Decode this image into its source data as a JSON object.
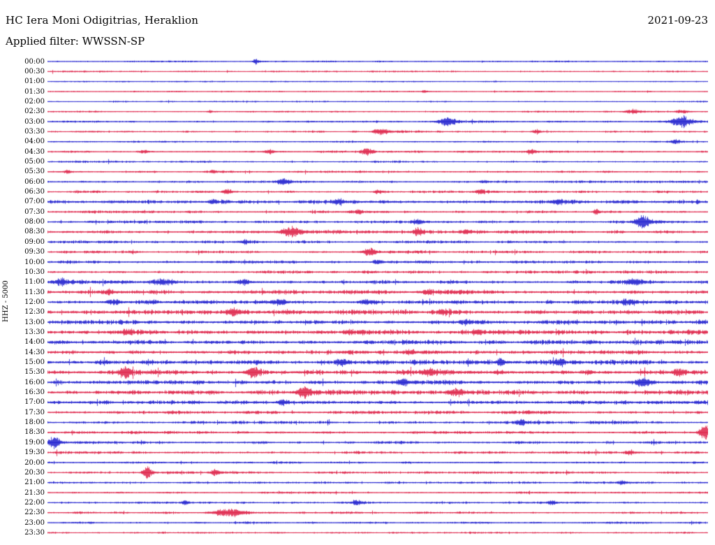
{
  "header": {
    "station_title": "HC Iera Moni Odigitrias, Heraklion",
    "date": "2021-09-23",
    "filter_label": "Applied filter: WWSSN-SP"
  },
  "y_axis_label": "HHZ - 5000",
  "colors": {
    "trace_blue": "#1212cc",
    "trace_red": "#dc143c",
    "text": "#000000",
    "background": "#ffffff"
  },
  "chart_data": {
    "type": "seismogram",
    "station": "HC Iera Moni Odigitrias, Heraklion",
    "date": "2021-09-23",
    "filter": "WWSSN-SP",
    "channel_scale": "HHZ - 5000",
    "row_interval_minutes": 30,
    "trace_color_cycle": [
      "#1212cc",
      "#dc143c"
    ],
    "rows": [
      {
        "time": "00:00",
        "noise": 0.7,
        "events": [
          [
            0.315,
            3,
            3
          ]
        ]
      },
      {
        "time": "00:30",
        "noise": 0.7,
        "events": []
      },
      {
        "time": "01:00",
        "noise": 0.6,
        "events": []
      },
      {
        "time": "01:30",
        "noise": 0.6,
        "events": [
          [
            0.57,
            1.5,
            3
          ]
        ]
      },
      {
        "time": "02:00",
        "noise": 0.6,
        "events": []
      },
      {
        "time": "02:30",
        "noise": 0.7,
        "events": [
          [
            0.245,
            1.5,
            3
          ],
          [
            0.885,
            2.5,
            8
          ],
          [
            0.96,
            2,
            5
          ]
        ]
      },
      {
        "time": "03:00",
        "noise": 0.8,
        "events": [
          [
            0.605,
            5,
            9
          ],
          [
            0.958,
            6,
            10
          ]
        ]
      },
      {
        "time": "03:30",
        "noise": 0.9,
        "events": [
          [
            0.503,
            4,
            7
          ],
          [
            0.74,
            2,
            4
          ]
        ]
      },
      {
        "time": "04:00",
        "noise": 0.8,
        "events": [
          [
            0.95,
            2.5,
            5
          ]
        ]
      },
      {
        "time": "04:30",
        "noise": 0.9,
        "events": [
          [
            0.145,
            2.5,
            4
          ],
          [
            0.335,
            2.5,
            5
          ],
          [
            0.483,
            3.5,
            6
          ],
          [
            0.732,
            2.5,
            5
          ]
        ]
      },
      {
        "time": "05:00",
        "noise": 0.9,
        "events": []
      },
      {
        "time": "05:30",
        "noise": 0.9,
        "events": [
          [
            0.03,
            2.5,
            3
          ],
          [
            0.25,
            2,
            3
          ]
        ]
      },
      {
        "time": "06:00",
        "noise": 1.0,
        "events": [
          [
            0.356,
            3,
            7
          ],
          [
            0.66,
            2,
            4
          ]
        ]
      },
      {
        "time": "06:30",
        "noise": 1.1,
        "events": [
          [
            0.27,
            2.5,
            4
          ],
          [
            0.5,
            2,
            4
          ],
          [
            0.655,
            2.5,
            4
          ]
        ]
      },
      {
        "time": "07:00",
        "noise": 1.6,
        "events": [
          [
            0.25,
            2.5,
            5
          ],
          [
            0.44,
            3,
            6
          ],
          [
            0.77,
            2.5,
            5
          ]
        ]
      },
      {
        "time": "07:30",
        "noise": 1.2,
        "events": [
          [
            0.47,
            2.5,
            4
          ],
          [
            0.83,
            4.5,
            2.5
          ]
        ]
      },
      {
        "time": "08:00",
        "noise": 1.3,
        "events": [
          [
            0.56,
            2.5,
            5
          ],
          [
            0.9,
            7,
            7
          ]
        ]
      },
      {
        "time": "08:30",
        "noise": 1.3,
        "events": [
          [
            0.368,
            6,
            10
          ],
          [
            0.56,
            3.5,
            6
          ],
          [
            0.635,
            2.5,
            5
          ]
        ]
      },
      {
        "time": "09:00",
        "noise": 1.2,
        "events": [
          [
            0.3,
            2,
            4
          ]
        ]
      },
      {
        "time": "09:30",
        "noise": 1.2,
        "events": [
          [
            0.487,
            5,
            6
          ]
        ]
      },
      {
        "time": "10:00",
        "noise": 1.3,
        "events": [
          [
            0.5,
            2.5,
            5
          ]
        ]
      },
      {
        "time": "10:30",
        "noise": 1.3,
        "events": []
      },
      {
        "time": "11:00",
        "noise": 1.6,
        "events": [
          [
            0.018,
            4,
            6
          ],
          [
            0.172,
            3,
            9
          ],
          [
            0.295,
            3,
            6
          ],
          [
            0.885,
            3,
            8
          ]
        ]
      },
      {
        "time": "11:30",
        "noise": 1.8,
        "events": [
          [
            0.09,
            2.5,
            5
          ],
          [
            0.575,
            2.5,
            5
          ]
        ]
      },
      {
        "time": "12:00",
        "noise": 1.8,
        "events": [
          [
            0.1,
            3,
            7
          ],
          [
            0.35,
            2.5,
            6
          ],
          [
            0.48,
            2.5,
            6
          ],
          [
            0.88,
            3,
            7
          ]
        ]
      },
      {
        "time": "12:30",
        "noise": 1.9,
        "events": [
          [
            0.28,
            3,
            6
          ],
          [
            0.6,
            2.5,
            5
          ]
        ]
      },
      {
        "time": "13:00",
        "noise": 1.9,
        "events": [
          [
            0.63,
            2.5,
            5
          ]
        ]
      },
      {
        "time": "13:30",
        "noise": 2.0,
        "events": [
          [
            0.12,
            2.5,
            5
          ],
          [
            0.455,
            2.5,
            5
          ],
          [
            0.65,
            2.5,
            5
          ]
        ]
      },
      {
        "time": "14:00",
        "noise": 1.9,
        "events": []
      },
      {
        "time": "14:30",
        "noise": 1.9,
        "events": [
          [
            0.55,
            2.5,
            5
          ]
        ]
      },
      {
        "time": "15:00",
        "noise": 2.0,
        "events": [
          [
            0.445,
            3,
            6
          ],
          [
            0.685,
            4.5,
            4
          ],
          [
            0.775,
            3.5,
            5
          ]
        ]
      },
      {
        "time": "15:30",
        "noise": 2.0,
        "events": [
          [
            0.117,
            6.5,
            5
          ],
          [
            0.31,
            6.5,
            6
          ],
          [
            0.578,
            3.5,
            6
          ],
          [
            0.955,
            3.5,
            6
          ]
        ]
      },
      {
        "time": "16:00",
        "noise": 1.9,
        "events": [
          [
            0.535,
            3,
            6
          ],
          [
            0.9,
            3.5,
            6
          ]
        ]
      },
      {
        "time": "16:30",
        "noise": 1.9,
        "events": [
          [
            0.388,
            6,
            7
          ],
          [
            0.617,
            4.5,
            7
          ]
        ]
      },
      {
        "time": "17:00",
        "noise": 1.7,
        "events": [
          [
            0.356,
            3,
            6
          ]
        ]
      },
      {
        "time": "17:30",
        "noise": 1.5,
        "events": []
      },
      {
        "time": "18:00",
        "noise": 1.3,
        "events": [
          [
            0.716,
            3.5,
            5
          ]
        ]
      },
      {
        "time": "18:30",
        "noise": 1.2,
        "events": [
          [
            0.995,
            8,
            6
          ]
        ]
      },
      {
        "time": "19:00",
        "noise": 1.2,
        "events": [
          [
            0.008,
            7,
            7
          ]
        ]
      },
      {
        "time": "19:30",
        "noise": 1.2,
        "events": [
          [
            0.88,
            2.5,
            5
          ]
        ]
      },
      {
        "time": "20:00",
        "noise": 1.0,
        "events": []
      },
      {
        "time": "20:30",
        "noise": 1.0,
        "events": [
          [
            0.15,
            8,
            4
          ],
          [
            0.253,
            3.5,
            4
          ]
        ]
      },
      {
        "time": "21:00",
        "noise": 1.0,
        "events": [
          [
            0.869,
            2.5,
            4
          ]
        ]
      },
      {
        "time": "21:30",
        "noise": 0.9,
        "events": []
      },
      {
        "time": "22:00",
        "noise": 1.0,
        "events": [
          [
            0.208,
            2.5,
            4
          ],
          [
            0.467,
            2.5,
            5
          ],
          [
            0.763,
            2,
            4
          ]
        ]
      },
      {
        "time": "22:30",
        "noise": 1.0,
        "events": [
          [
            0.272,
            5,
            14
          ]
        ]
      },
      {
        "time": "23:00",
        "noise": 0.9,
        "events": []
      },
      {
        "time": "23:30",
        "noise": 0.9,
        "events": []
      }
    ]
  }
}
